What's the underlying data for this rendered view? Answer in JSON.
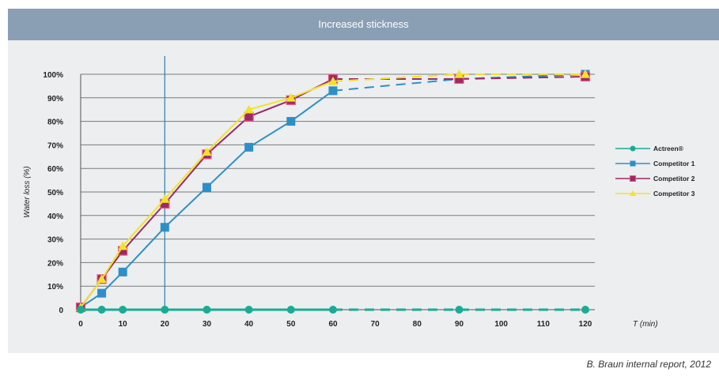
{
  "source_note": "B. Braun internal report, 2012",
  "chart_data": {
    "type": "line",
    "title": "Increased stickness",
    "xlabel": "T (min)",
    "ylabel": "Water loss (%)",
    "x_ticks": [
      0,
      10,
      20,
      30,
      40,
      50,
      60,
      70,
      80,
      90,
      100,
      110,
      120
    ],
    "y_ticks": [
      0,
      10,
      20,
      30,
      40,
      50,
      60,
      70,
      80,
      90,
      100
    ],
    "y_tick_labels": [
      "0",
      "10%",
      "20%",
      "30%",
      "40%",
      "50%",
      "60%",
      "70%",
      "80%",
      "90%",
      "100%"
    ],
    "xlim": [
      0,
      120
    ],
    "ylim": [
      0,
      100
    ],
    "grid": "horizontal",
    "reference_line_x": 20,
    "legend_position": "right",
    "series": [
      {
        "name": "Actreen®",
        "color": "#1aab95",
        "marker": "circle",
        "x": [
          0,
          5,
          10,
          20,
          30,
          40,
          50,
          60,
          90,
          120
        ],
        "y": [
          0,
          0,
          0,
          0,
          0,
          0,
          0,
          0,
          0,
          0
        ],
        "dashed_after_x": 60
      },
      {
        "name": "Competitor 1",
        "color": "#2e8fc8",
        "marker": "square",
        "x": [
          0,
          5,
          10,
          20,
          30,
          40,
          50,
          60,
          90,
          120
        ],
        "y": [
          1,
          7,
          16,
          35,
          52,
          69,
          80,
          93,
          98,
          100
        ],
        "dashed_after_x": 60
      },
      {
        "name": "Competitor 2",
        "color": "#9b2a66",
        "marker": "square",
        "x": [
          0,
          5,
          10,
          20,
          30,
          40,
          50,
          60,
          90,
          120
        ],
        "y": [
          1,
          13,
          25,
          45,
          66,
          82,
          89,
          98,
          98,
          99
        ],
        "dashed_after_x": 60
      },
      {
        "name": "Competitor 3",
        "color": "#f2e22a",
        "marker": "triangle",
        "x": [
          0,
          5,
          10,
          20,
          30,
          40,
          50,
          60,
          90,
          120
        ],
        "y": [
          1,
          13,
          27,
          47,
          67,
          85,
          90,
          97,
          100,
          100
        ],
        "dashed_after_x": 60
      }
    ]
  }
}
